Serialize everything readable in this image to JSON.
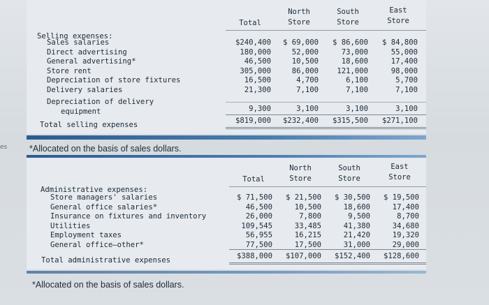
{
  "selling": {
    "headers": {
      "total": "Total",
      "north": "North\nStore",
      "south": "South\nStore",
      "east": "East\nStore"
    },
    "title": "Selling expenses:",
    "rows": [
      {
        "label": "Sales salaries",
        "total": "$240,400",
        "north": "$ 69,000",
        "south": "$ 86,600",
        "east": "$ 84,800"
      },
      {
        "label": "Direct advertising",
        "total": "180,000",
        "north": "52,000",
        "south": "73,000",
        "east": "55,000"
      },
      {
        "label": "General advertising*",
        "total": "46,500",
        "north": "10,500",
        "south": "18,600",
        "east": "17,400"
      },
      {
        "label": "Store rent",
        "total": "305,000",
        "north": "86,000",
        "south": "121,000",
        "east": "98,000"
      },
      {
        "label": "Depreciation of store fixtures",
        "total": "16,500",
        "north": "4,700",
        "south": "6,100",
        "east": "5,700"
      },
      {
        "label": "Delivery salaries",
        "total": "21,300",
        "north": "7,100",
        "south": "7,100",
        "east": "7,100"
      }
    ],
    "last_row_label_1": "Depreciation of delivery",
    "last_row_label_2": "equipment",
    "last_row": {
      "total": "9,300",
      "north": "3,100",
      "south": "3,100",
      "east": "3,100"
    },
    "total_label": "Total selling expenses",
    "totals": {
      "total": "$819,000",
      "north": "$232,400",
      "south": "$315,500",
      "east": "$271,100"
    }
  },
  "selling_footnote": "*Allocated on the basis of sales dollars.",
  "admin": {
    "headers": {
      "total": "Total",
      "north": "North\nStore",
      "south": "South\nStore",
      "east": "East\nStore"
    },
    "title": "Administrative expenses:",
    "rows": [
      {
        "label": "Store managers' salaries",
        "total": "$ 71,500",
        "north": "$ 21,500",
        "south": "$ 30,500",
        "east": "$ 19,500"
      },
      {
        "label": "General office salaries*",
        "total": "46,500",
        "north": "10,500",
        "south": "18,600",
        "east": "17,400"
      },
      {
        "label": "Insurance on fixtures and inventory",
        "total": "26,000",
        "north": "7,800",
        "south": "9,500",
        "east": "8,700"
      },
      {
        "label": "Utilities",
        "total": "109,545",
        "north": "33,485",
        "south": "41,380",
        "east": "34,680"
      },
      {
        "label": "Employment taxes",
        "total": "56,955",
        "north": "16,215",
        "south": "21,420",
        "east": "19,320"
      },
      {
        "label": "General office—other*",
        "total": "77,500",
        "north": "17,500",
        "south": "31,000",
        "east": "29,000"
      }
    ],
    "total_label": "Total administrative expenses",
    "totals": {
      "total": "$388,000",
      "north": "$107,000",
      "south": "$152,400",
      "east": "$128,600"
    }
  },
  "admin_footnote": "*Allocated on the basis of sales dollars.",
  "gutter_text": "es"
}
